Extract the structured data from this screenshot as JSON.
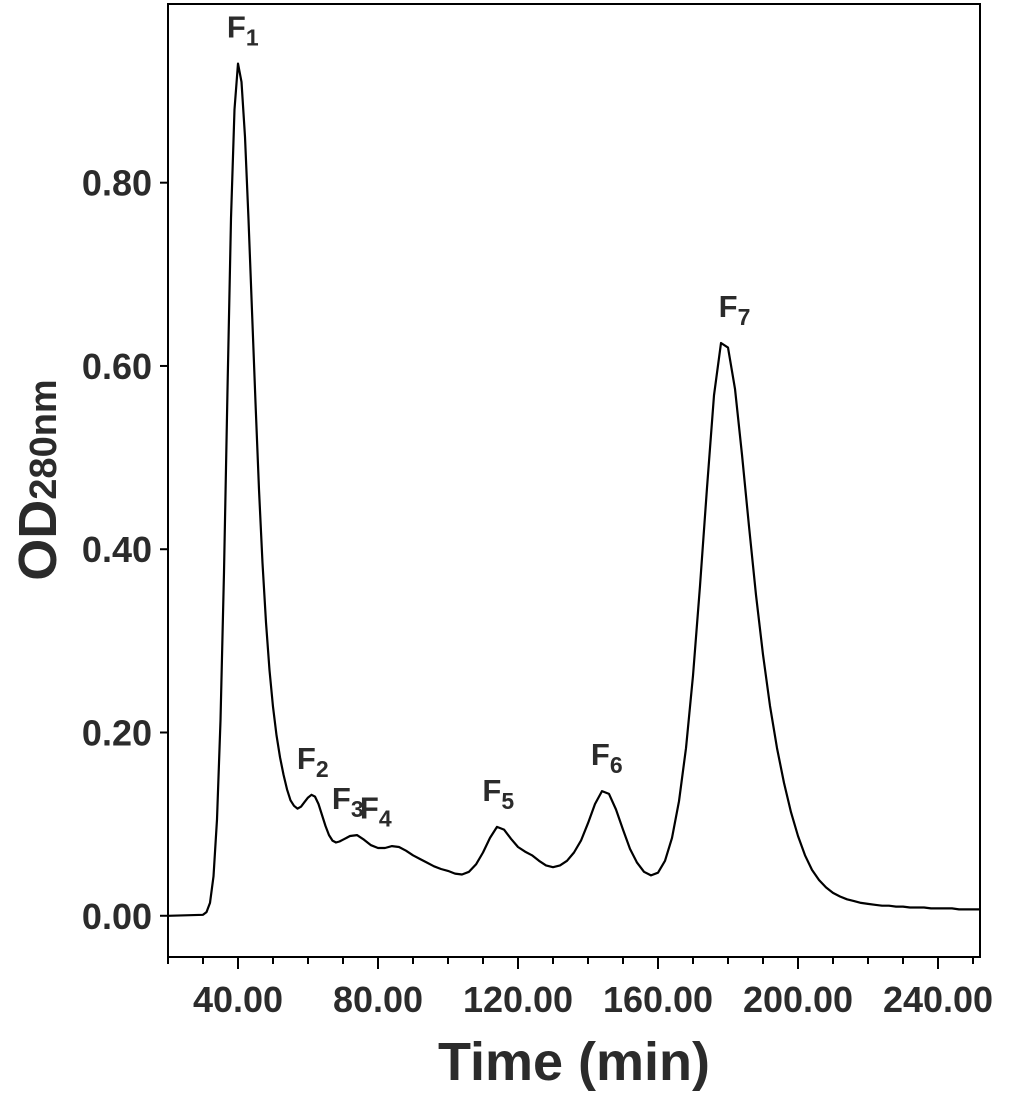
{
  "chart_data": {
    "type": "line",
    "xlabel": "Time (min)",
    "ylabel": {
      "main": "OD",
      "sub": "280nm"
    },
    "xlim": [
      20,
      252
    ],
    "ylim": [
      -0.045,
      0.995
    ],
    "x_ticks": [
      40,
      80,
      120,
      160,
      200,
      240
    ],
    "x_tick_labels": [
      "40.00",
      "80.00",
      "120.00",
      "160.00",
      "200.00",
      "240.00"
    ],
    "x_minor_step": 10,
    "y_ticks": [
      0,
      0.2,
      0.4,
      0.6,
      0.8
    ],
    "y_tick_labels": [
      "0.00",
      "0.20",
      "0.40",
      "0.60",
      "0.80"
    ],
    "grid": false,
    "line_color": "#000000",
    "series": [
      {
        "x": [
          20,
          30,
          31,
          32,
          33,
          34,
          35,
          36,
          37,
          38,
          39,
          40,
          41,
          42,
          43,
          44,
          45,
          46,
          47,
          48,
          49,
          50,
          51,
          52,
          53,
          54,
          55,
          56,
          57,
          58,
          59,
          60,
          61,
          62,
          63,
          64,
          65,
          66,
          67,
          68,
          69,
          70,
          71,
          72,
          74,
          76,
          78,
          80,
          82,
          84,
          86,
          88,
          90,
          92,
          94,
          96,
          98,
          100,
          102,
          104,
          106,
          108,
          110,
          112,
          114,
          116,
          118,
          120,
          122,
          124,
          126,
          128,
          130,
          132,
          134,
          136,
          138,
          140,
          142,
          144,
          146,
          148,
          150,
          152,
          154,
          156,
          158,
          160,
          162,
          164,
          166,
          168,
          170,
          172,
          174,
          176,
          178,
          180,
          182,
          184,
          186,
          188,
          190,
          192,
          194,
          196,
          198,
          200,
          202,
          204,
          206,
          208,
          210,
          212,
          214,
          216,
          218,
          220,
          222,
          224,
          226,
          228,
          230,
          232,
          234,
          236,
          238,
          240,
          242,
          244,
          246,
          248,
          250,
          252
        ],
        "y": [
          0,
          0.001,
          0.004,
          0.014,
          0.043,
          0.105,
          0.213,
          0.375,
          0.574,
          0.761,
          0.88,
          0.93,
          0.91,
          0.85,
          0.76,
          0.66,
          0.56,
          0.465,
          0.385,
          0.32,
          0.268,
          0.228,
          0.197,
          0.173,
          0.154,
          0.138,
          0.126,
          0.12,
          0.117,
          0.119,
          0.124,
          0.129,
          0.132,
          0.13,
          0.122,
          0.11,
          0.098,
          0.088,
          0.082,
          0.08,
          0.081,
          0.083,
          0.085,
          0.087,
          0.088,
          0.083,
          0.077,
          0.074,
          0.074,
          0.076,
          0.075,
          0.071,
          0.066,
          0.062,
          0.058,
          0.054,
          0.051,
          0.049,
          0.046,
          0.045,
          0.048,
          0.056,
          0.069,
          0.085,
          0.097,
          0.094,
          0.084,
          0.075,
          0.07,
          0.066,
          0.06,
          0.055,
          0.053,
          0.055,
          0.06,
          0.069,
          0.082,
          0.101,
          0.122,
          0.136,
          0.133,
          0.116,
          0.094,
          0.073,
          0.058,
          0.048,
          0.044,
          0.047,
          0.06,
          0.085,
          0.125,
          0.183,
          0.262,
          0.36,
          0.467,
          0.568,
          0.625,
          0.62,
          0.575,
          0.503,
          0.425,
          0.35,
          0.285,
          0.229,
          0.183,
          0.145,
          0.113,
          0.087,
          0.066,
          0.05,
          0.039,
          0.031,
          0.025,
          0.021,
          0.018,
          0.016,
          0.014,
          0.013,
          0.012,
          0.011,
          0.011,
          0.01,
          0.01,
          0.009,
          0.009,
          0.009,
          0.008,
          0.008,
          0.008,
          0.008,
          0.007,
          0.007,
          0.007,
          0.007
        ]
      }
    ],
    "annotations": [
      {
        "text": "F",
        "sub": "1",
        "x": 42.5,
        "y": 0.93
      },
      {
        "text": "F",
        "sub": "2",
        "x": 62.5,
        "y": 0.132
      },
      {
        "text": "F",
        "sub": "3",
        "x": 72.5,
        "y": 0.088
      },
      {
        "text": "F",
        "sub": "4",
        "x": 80.5,
        "y": 0.078
      },
      {
        "text": "F",
        "sub": "5",
        "x": 115.5,
        "y": 0.097
      },
      {
        "text": "F",
        "sub": "6",
        "x": 146.5,
        "y": 0.136
      },
      {
        "text": "F",
        "sub": "7",
        "x": 183,
        "y": 0.625
      }
    ]
  }
}
